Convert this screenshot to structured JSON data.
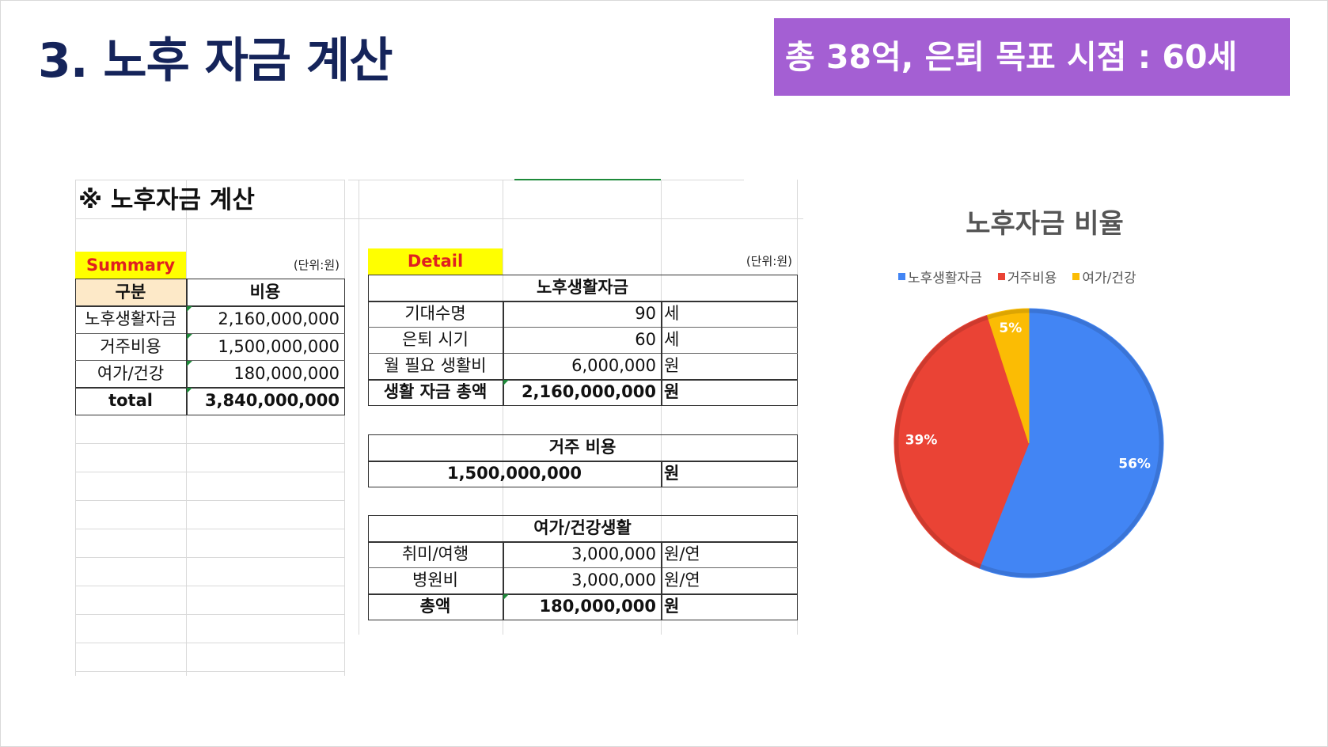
{
  "slide": {
    "title": "3. 노후 자금 계산",
    "banner": "총 38억, 은퇴 목표 시점  : 60세"
  },
  "sheet": {
    "title": "※ 노후자금 계산",
    "summary": {
      "label": "Summary",
      "unit": "(단위:원)",
      "headers": [
        "구분",
        "비용"
      ],
      "rows": [
        {
          "name": "노후생활자금",
          "value": "2,160,000,000"
        },
        {
          "name": "거주비용",
          "value": "1,500,000,000"
        },
        {
          "name": "여가/건강",
          "value": "180,000,000"
        }
      ],
      "total": {
        "name": "total",
        "value": "3,840,000,000"
      }
    },
    "detail": {
      "label": "Detail",
      "unit": "(단위:원)",
      "living": {
        "header": "노후생활자금",
        "rows": [
          {
            "name": "기대수명",
            "value": "90",
            "unit": "세"
          },
          {
            "name": "은퇴 시기",
            "value": "60",
            "unit": "세"
          },
          {
            "name": "월 필요 생활비",
            "value": "6,000,000",
            "unit": "원"
          }
        ],
        "total": {
          "name": "생활 자금 총액",
          "value": "2,160,000,000",
          "unit": "원"
        }
      },
      "housing": {
        "header": "거주 비용",
        "value": "1,500,000,000",
        "unit": "원"
      },
      "leisure": {
        "header": "여가/건강생활",
        "rows": [
          {
            "name": "취미/여행",
            "value": "3,000,000",
            "unit": "원/연"
          },
          {
            "name": "병원비",
            "value": "3,000,000",
            "unit": "원/연"
          }
        ],
        "total": {
          "name": "총액",
          "value": "180,000,000",
          "unit": "원"
        }
      }
    }
  },
  "chart_data": {
    "type": "pie",
    "title": "노후자금 비율",
    "legend_position": "top",
    "series": [
      {
        "name": "노후생활자금",
        "value": 56,
        "label": "56%",
        "color": "#4285f4"
      },
      {
        "name": "거주비용",
        "value": 39,
        "label": "39%",
        "color": "#ea4335"
      },
      {
        "name": "여가/건강",
        "value": 5,
        "label": "5%",
        "color": "#fbbc04"
      }
    ]
  }
}
